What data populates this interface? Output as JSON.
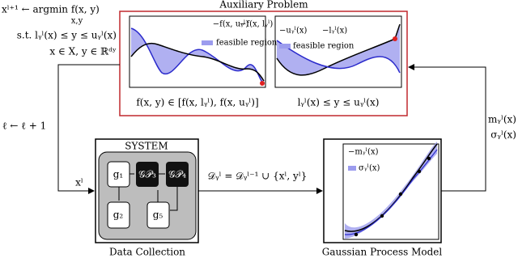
{
  "auxiliary": {
    "title": "Auxiliary Problem",
    "left_plot": {
      "legend": [
        "−f(x, uᵧˡ)",
        "−f(x, lᵧˡ)",
        "feasible region"
      ],
      "caption": "f(x, y) ∈ [f(x, lᵧˡ), f(x, uᵧˡ)]"
    },
    "right_plot": {
      "legend": [
        "−uᵧˡ(x)",
        "−lᵧˡ(x)",
        "feasible region"
      ],
      "caption": "lᵧˡ(x) ≤ y ≤ uᵧˡ(x)"
    }
  },
  "problem": {
    "lines": [
      "xˡ⁺¹ ← argmin f(x, y)",
      "x,y",
      "s.t. lᵧˡ(x) ≤ y ≤ uᵧˡ(x)",
      "x ∈ X, y ∈ ℝᵈʸ"
    ]
  },
  "update": "ℓ ← ℓ + 1",
  "input": "xˡ",
  "system": {
    "title": "SYSTEM",
    "nodes": [
      "g₁",
      "𝒢𝒫₃",
      "𝒢𝒫₄",
      "g₂",
      "g₅"
    ],
    "label": "Data Collection"
  },
  "dataset": "𝒟ᵧˡ = 𝒟ᵧˡ⁻¹ ∪ {xˡ, yˡ}",
  "gp": {
    "legend": [
      "−mᵧˡ(x)",
      "σᵧˡ(x)"
    ],
    "label": "Gaussian Process Model"
  },
  "outputs": [
    "mᵧˡ(x)",
    "σᵧˡ(x)"
  ]
}
